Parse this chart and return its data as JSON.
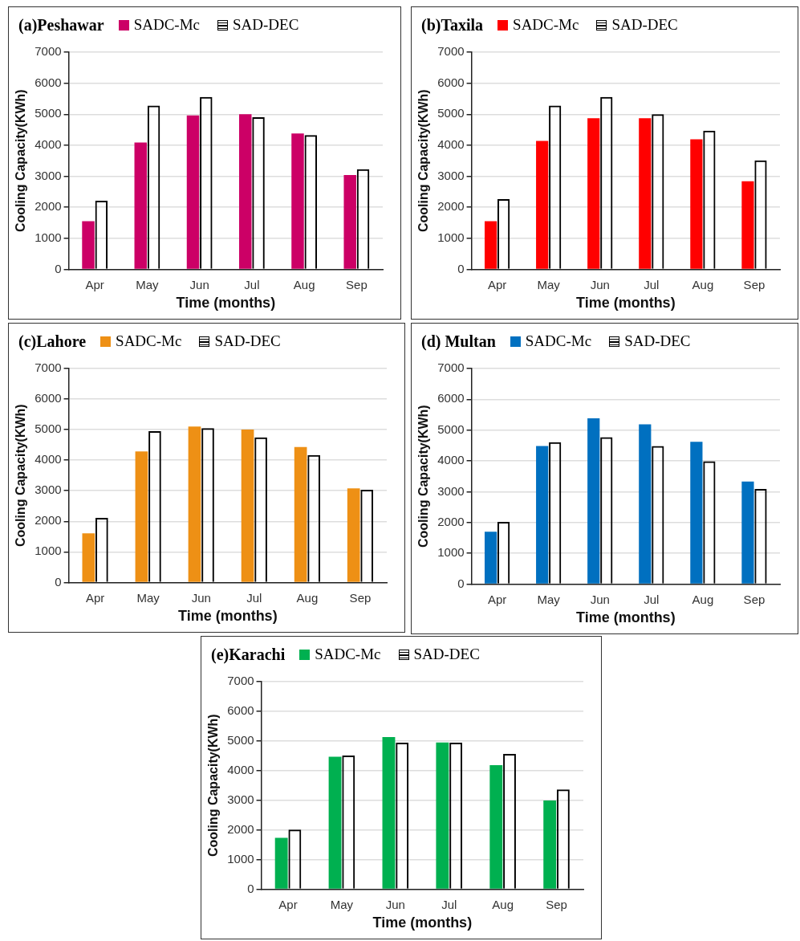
{
  "chart_data": [
    {
      "type": "bar",
      "title": "(a)Peshawar",
      "xlabel": "Time (months)",
      "ylabel": "Cooling Capacity(KWh)",
      "categories": [
        "Apr",
        "May",
        "Jun",
        "Jul",
        "Aug",
        "Sep"
      ],
      "series": [
        {
          "name": "SADC-Mc",
          "color": "#cc0066",
          "values": [
            1550,
            4090,
            4960,
            5000,
            4380,
            3040
          ]
        },
        {
          "name": "SAD-DEC",
          "color": "#000000",
          "values": [
            2210,
            5280,
            5560,
            4900,
            4330,
            3230
          ]
        }
      ],
      "ylim": [
        0,
        7000
      ],
      "yticks": [
        0,
        1000,
        2000,
        3000,
        4000,
        5000,
        6000,
        7000
      ],
      "grid": "y",
      "legend": "top"
    },
    {
      "type": "bar",
      "title": "(b)Taxila",
      "xlabel": "Time (months)",
      "ylabel": "Cooling Capacity(KWh)",
      "categories": [
        "Apr",
        "May",
        "Jun",
        "Jul",
        "Aug",
        "Sep"
      ],
      "series": [
        {
          "name": "SADC-Mc",
          "color": "#ff0000",
          "values": [
            1550,
            4140,
            4870,
            4870,
            4190,
            2840
          ]
        },
        {
          "name": "SAD-DEC",
          "color": "#000000",
          "values": [
            2260,
            5280,
            5560,
            5000,
            4470,
            3510
          ]
        }
      ],
      "ylim": [
        0,
        7000
      ],
      "yticks": [
        0,
        1000,
        2000,
        3000,
        4000,
        5000,
        6000,
        7000
      ],
      "grid": "y",
      "legend": "top"
    },
    {
      "type": "bar",
      "title": "(c)Lahore",
      "xlabel": "Time (months)",
      "ylabel": "Cooling Capacity(KWh)",
      "categories": [
        "Apr",
        "May",
        "Jun",
        "Jul",
        "Aug",
        "Sep"
      ],
      "series": [
        {
          "name": "SADC-Mc",
          "color": "#ee9015",
          "values": [
            1610,
            4290,
            5100,
            5000,
            4430,
            3080
          ]
        },
        {
          "name": "SAD-DEC",
          "color": "#000000",
          "values": [
            2110,
            4950,
            5050,
            4750,
            4170,
            3030
          ]
        }
      ],
      "ylim": [
        0,
        7000
      ],
      "yticks": [
        0,
        1000,
        2000,
        3000,
        4000,
        5000,
        6000,
        7000
      ],
      "grid": "y",
      "legend": "top"
    },
    {
      "type": "bar",
      "title": "(d) Multan",
      "xlabel": "Time (months)",
      "ylabel": "Cooling Capacity(KWh)",
      "categories": [
        "Apr",
        "May",
        "Jun",
        "Jul",
        "Aug",
        "Sep"
      ],
      "series": [
        {
          "name": "SADC-Mc",
          "color": "#0070c0",
          "values": [
            1700,
            4480,
            5380,
            5190,
            4620,
            3330
          ]
        },
        {
          "name": "SAD-DEC",
          "color": "#000000",
          "values": [
            2020,
            4610,
            4770,
            4480,
            3990,
            3090
          ]
        }
      ],
      "ylim": [
        0,
        7000
      ],
      "yticks": [
        0,
        1000,
        2000,
        3000,
        4000,
        5000,
        6000,
        7000
      ],
      "grid": "y",
      "legend": "top"
    },
    {
      "type": "bar",
      "title": "(e)Karachi",
      "xlabel": "Time (months)",
      "ylabel": "Cooling Capacity(KWh)",
      "categories": [
        "Apr",
        "May",
        "Jun",
        "Jul",
        "Aug",
        "Sep"
      ],
      "series": [
        {
          "name": "SADC-Mc",
          "color": "#00b050",
          "values": [
            1730,
            4470,
            5130,
            4950,
            4180,
            2990
          ]
        },
        {
          "name": "SAD-DEC",
          "color": "#000000",
          "values": [
            2010,
            4510,
            4940,
            4940,
            4560,
            3360
          ]
        }
      ],
      "ylim": [
        0,
        7000
      ],
      "yticks": [
        0,
        1000,
        2000,
        3000,
        4000,
        5000,
        6000,
        7000
      ],
      "grid": "y",
      "legend": "top"
    }
  ]
}
